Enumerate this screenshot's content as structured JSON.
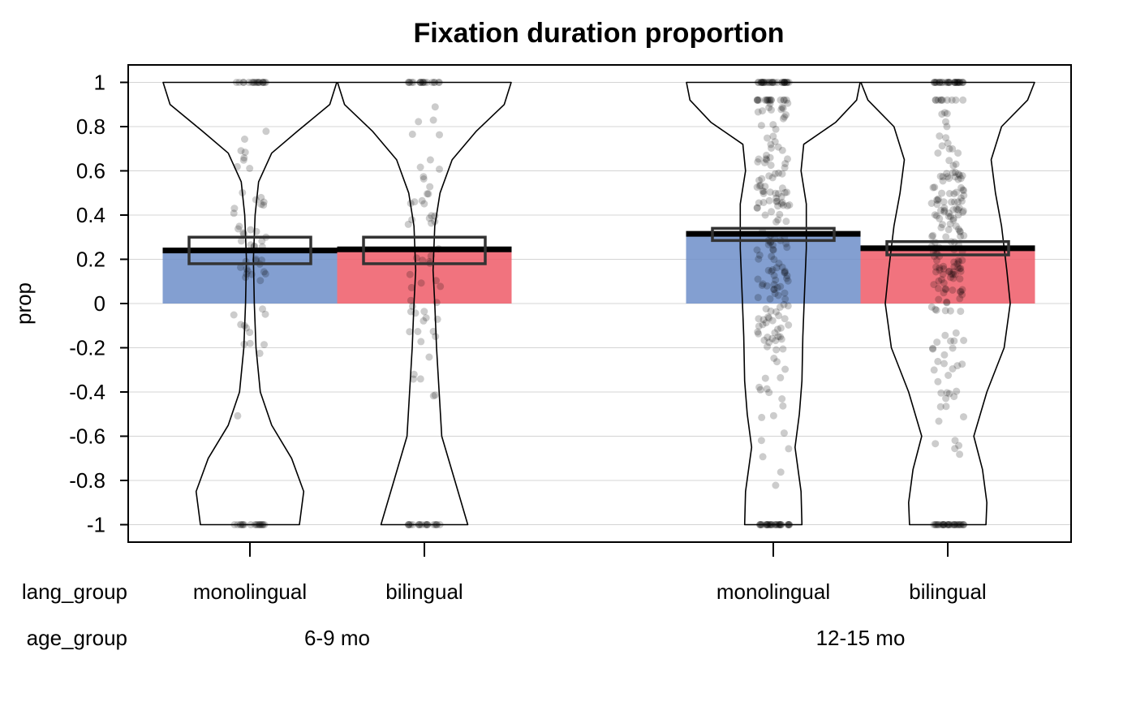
{
  "chart_data": {
    "type": "pirateplot",
    "title": "Fixation duration proportion",
    "ylabel": "prop",
    "ylim": [
      -1.08,
      1.08
    ],
    "yticks": [
      1,
      0.8,
      0.6,
      0.4,
      0.2,
      0,
      -0.2,
      -0.4,
      -0.6,
      -0.8,
      -1
    ],
    "ytick_labels": [
      "1",
      "0.8",
      "0.6",
      "0.4",
      "0.2",
      "0",
      "-0.2",
      "-0.4",
      "-0.6",
      "-0.8",
      "-1"
    ],
    "grid": true,
    "x_factor_names": [
      "lang_group",
      "age_group"
    ],
    "groups": [
      {
        "age_group": "6-9 mo",
        "bars": [
          {
            "lang_group": "monolingual",
            "mean": 0.24,
            "hdi_low": 0.18,
            "hdi_high": 0.3,
            "color": "#6d8ec9"
          },
          {
            "lang_group": "bilingual",
            "mean": 0.245,
            "hdi_low": 0.18,
            "hdi_high": 0.3,
            "color": "#ef5a67"
          }
        ]
      },
      {
        "age_group": "12-15 mo",
        "bars": [
          {
            "lang_group": "monolingual",
            "mean": 0.315,
            "hdi_low": 0.285,
            "hdi_high": 0.34,
            "color": "#6d8ec9"
          },
          {
            "lang_group": "bilingual",
            "mean": 0.25,
            "hdi_low": 0.22,
            "hdi_high": 0.28,
            "color": "#ef5a67"
          }
        ]
      }
    ]
  }
}
